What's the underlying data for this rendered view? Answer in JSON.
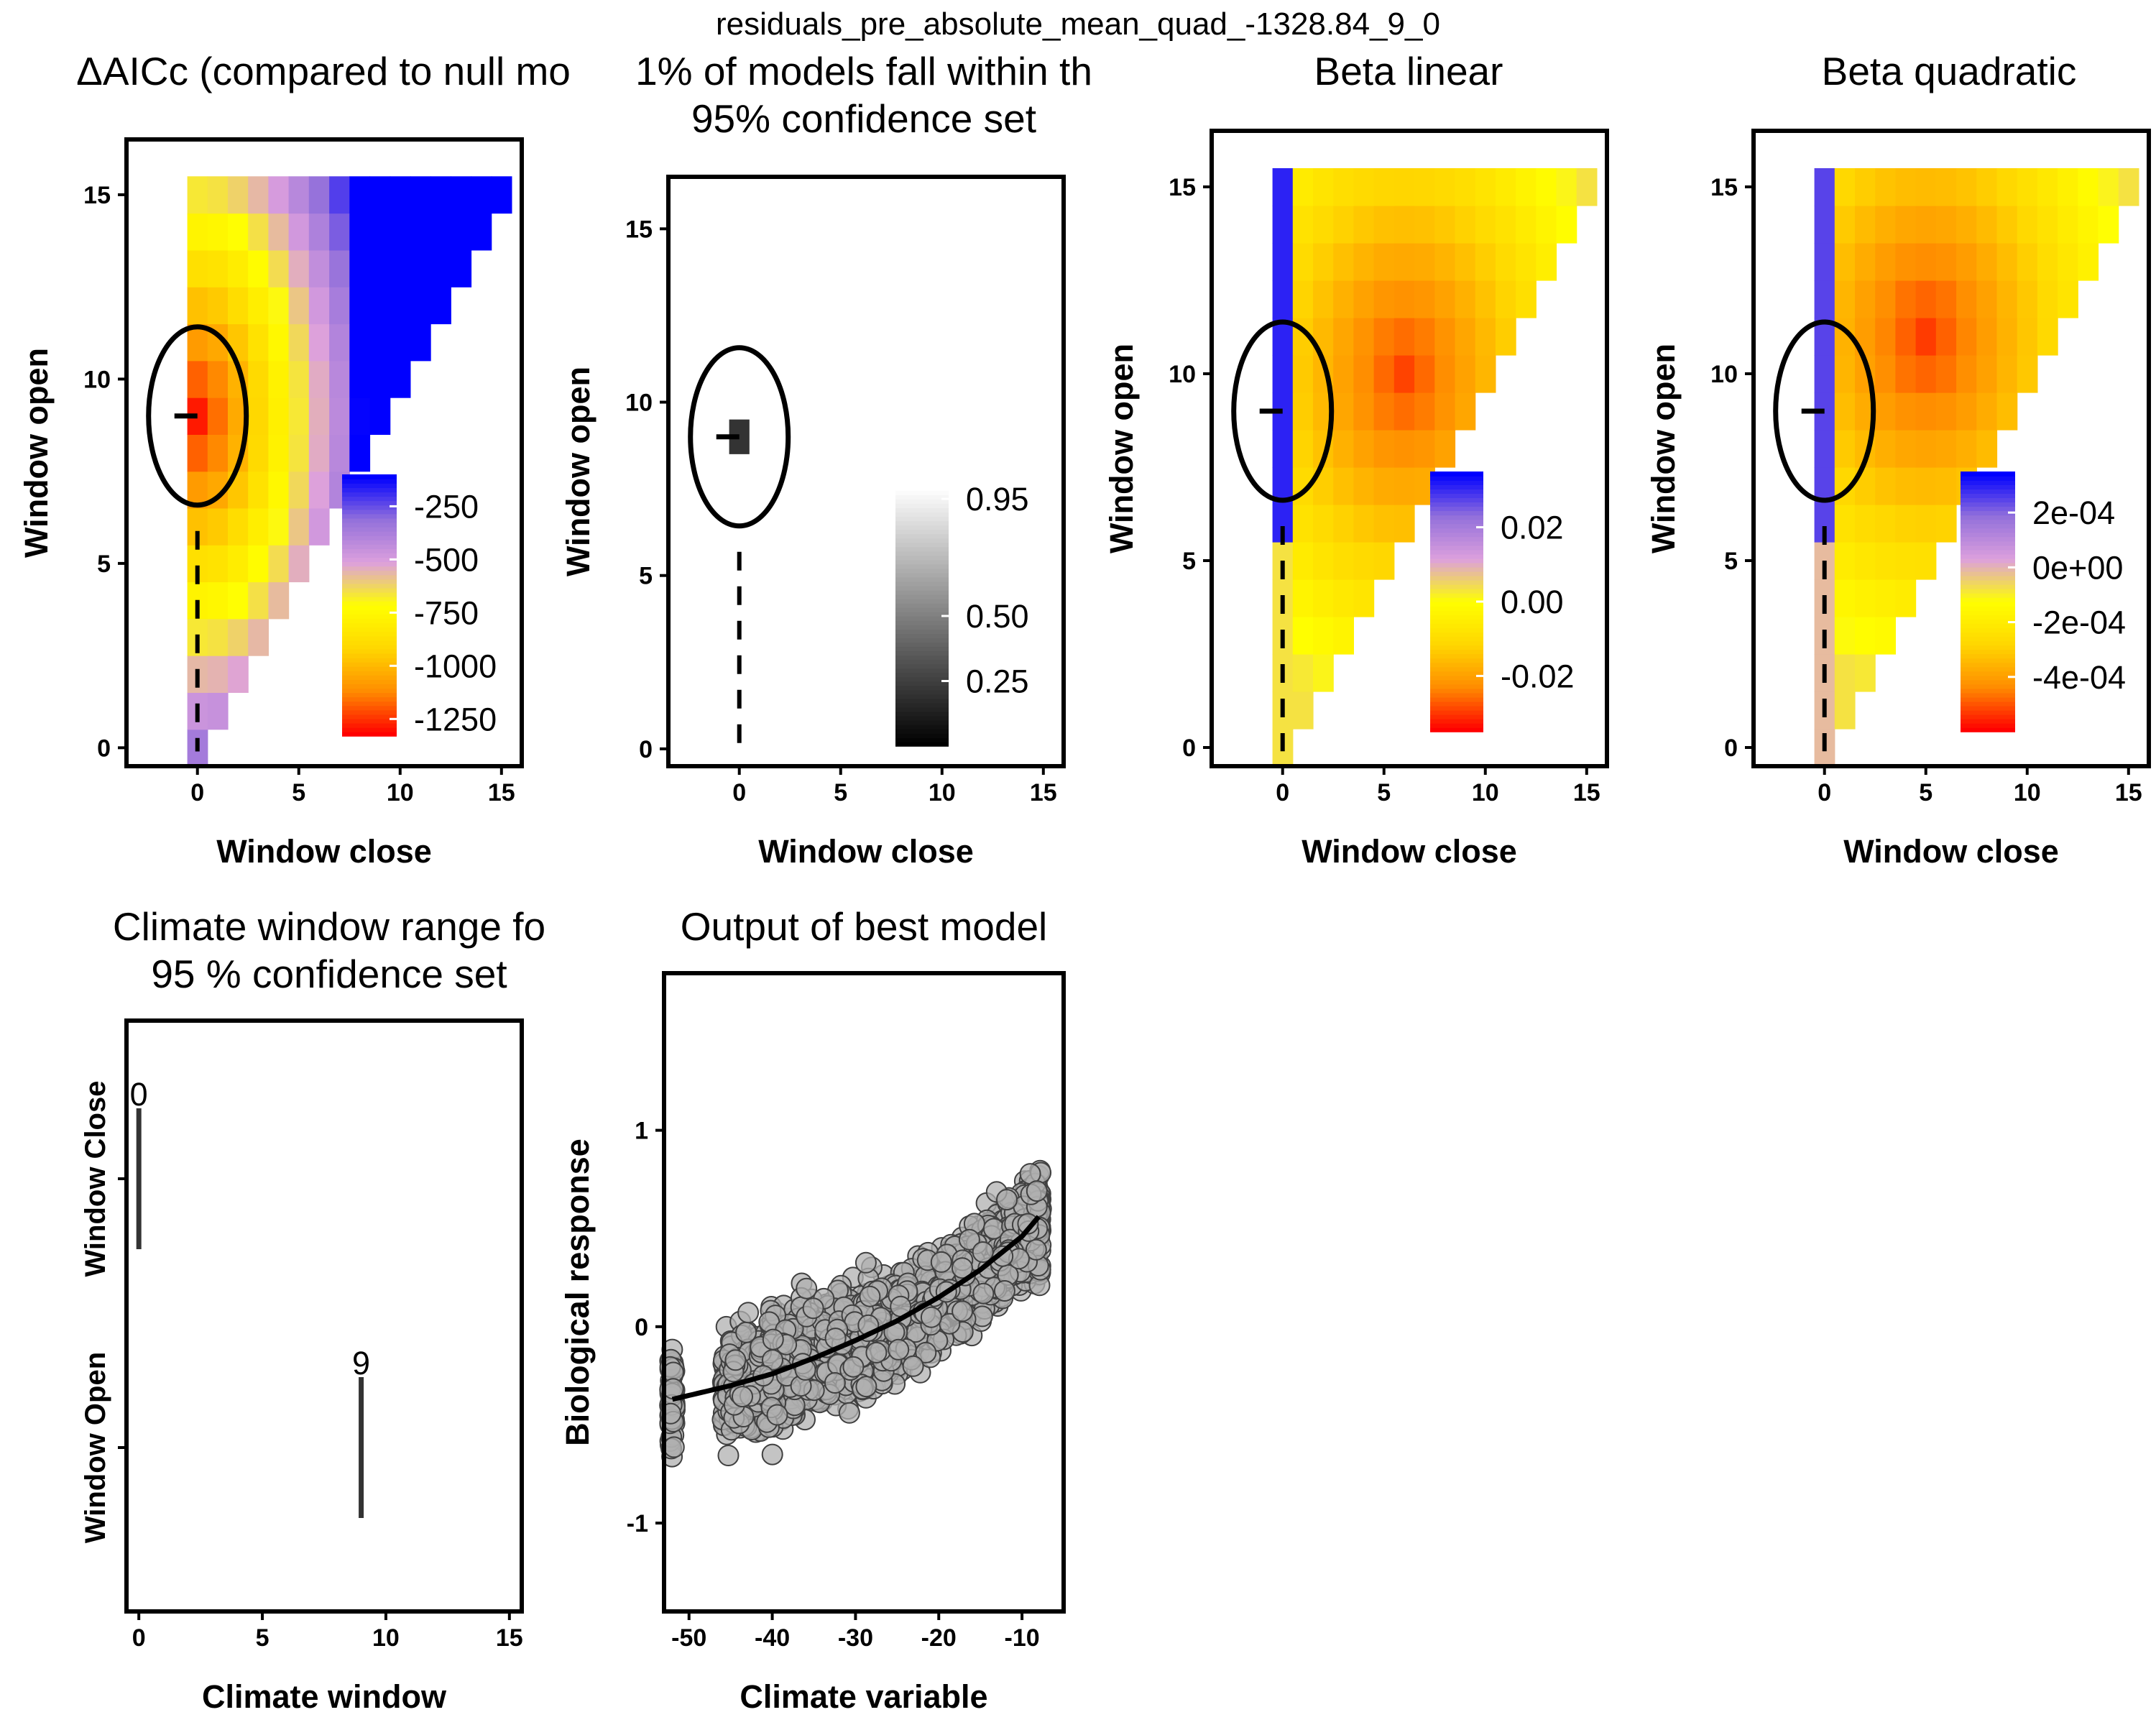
{
  "figure_title": "residuals_pre_absolute_mean_quad_-1328.84_9_0",
  "colors": {
    "heat_scale": [
      "#ff0000",
      "#ff8c00",
      "#ffd700",
      "#ffff00",
      "#dda0dd",
      "#9370db",
      "#0000ff"
    ],
    "gray_scale": [
      "#000000",
      "#ffffff"
    ],
    "points_fill": "#b0b0b0",
    "points_stroke": "#404040"
  },
  "chart_data": [
    {
      "type": "heatmap",
      "title": "ΔAICc (compared to null mo",
      "xlabel": "Window close",
      "ylabel": "Window open",
      "xticks": [
        0,
        5,
        10,
        15
      ],
      "yticks": [
        0,
        5,
        10,
        15
      ],
      "xlim": [
        -3.5,
        16
      ],
      "ylim": [
        -0.5,
        16.5
      ],
      "colorbar": {
        "ticks": [
          "-250",
          "-500",
          "-750",
          "-1000",
          "-1250"
        ],
        "range": [
          -1330,
          -100
        ]
      },
      "best_window": {
        "open": 9,
        "close": 0
      },
      "note_cells": "upper triangle: open >= close, 0..15",
      "value_min": -1328.84,
      "value_max": -100
    },
    {
      "type": "heatmap",
      "title_lines": [
        "1% of models fall within th",
        "95% confidence set"
      ],
      "xlabel": "Window close",
      "ylabel": "Window open",
      "xticks": [
        0,
        5,
        10,
        15
      ],
      "yticks": [
        0,
        5,
        10,
        15
      ],
      "xlim": [
        -3.5,
        16
      ],
      "ylim": [
        -0.5,
        16.5
      ],
      "colorbar": {
        "ticks": [
          "0.95",
          "0.50",
          "0.25"
        ],
        "range": [
          0,
          1
        ]
      },
      "best_window": {
        "open": 9,
        "close": 0
      },
      "confidence_cells": [
        {
          "close": 0,
          "open": 9
        }
      ]
    },
    {
      "type": "heatmap",
      "title": "Beta linear",
      "xlabel": "Window close",
      "ylabel": "Window open",
      "xticks": [
        0,
        5,
        10,
        15
      ],
      "yticks": [
        0,
        5,
        10,
        15
      ],
      "xlim": [
        -3.5,
        16
      ],
      "ylim": [
        -0.5,
        16.5
      ],
      "colorbar": {
        "ticks": [
          "0.02",
          "0.00",
          "-0.02"
        ],
        "range": [
          -0.035,
          0.035
        ]
      },
      "best_window": {
        "open": 9,
        "close": 0
      }
    },
    {
      "type": "heatmap",
      "title": "Beta quadratic",
      "xlabel": "Window close",
      "ylabel": "Window open",
      "xticks": [
        0,
        5,
        10,
        15
      ],
      "yticks": [
        0,
        5,
        10,
        15
      ],
      "xlim": [
        -3.5,
        16
      ],
      "ylim": [
        -0.5,
        16.5
      ],
      "colorbar": {
        "ticks": [
          "2e-04",
          "0e+00",
          "-2e-04",
          "-4e-04"
        ],
        "range": [
          -0.0006,
          0.00035
        ]
      },
      "best_window": {
        "open": 9,
        "close": 0
      }
    },
    {
      "type": "line",
      "title_lines": [
        "Climate window range fo",
        "95 % confidence set"
      ],
      "xlabel": "Climate window",
      "yticklabels": [
        "Window Close",
        "Window Open"
      ],
      "xticks": [
        0,
        5,
        10,
        15
      ],
      "xlim": [
        -0.5,
        15.5
      ],
      "ranges": [
        {
          "name": "Window Close",
          "label": "0",
          "min": 0,
          "max": 0
        },
        {
          "name": "Window Open",
          "label": "9",
          "min": 9,
          "max": 9
        }
      ]
    },
    {
      "type": "scatter",
      "title": "Output of best model",
      "xlabel": "Climate variable",
      "ylabel": "Biological response",
      "xticks": [
        -50,
        -40,
        -30,
        -20,
        -10
      ],
      "yticks": [
        -1,
        0,
        1
      ],
      "xlim": [
        -53,
        -5
      ],
      "ylim": [
        -1.45,
        1.8
      ],
      "n_points": 2000,
      "fit_curve": {
        "x": [
          -52,
          -45,
          -40,
          -35,
          -30,
          -25,
          -20,
          -15,
          -10,
          -8
        ],
        "y": [
          -0.37,
          -0.3,
          -0.24,
          -0.16,
          -0.07,
          0.03,
          0.15,
          0.29,
          0.46,
          0.56
        ]
      }
    }
  ]
}
